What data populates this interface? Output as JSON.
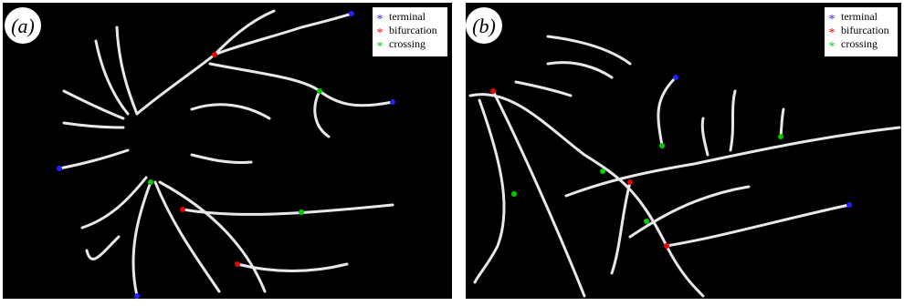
{
  "panels": [
    {
      "label": "(a)",
      "legend": [
        "terminal",
        "bifurcation",
        "crossing"
      ]
    },
    {
      "label": "(b)",
      "legend": [
        "terminal",
        "bifurcation",
        "crossing"
      ]
    }
  ]
}
